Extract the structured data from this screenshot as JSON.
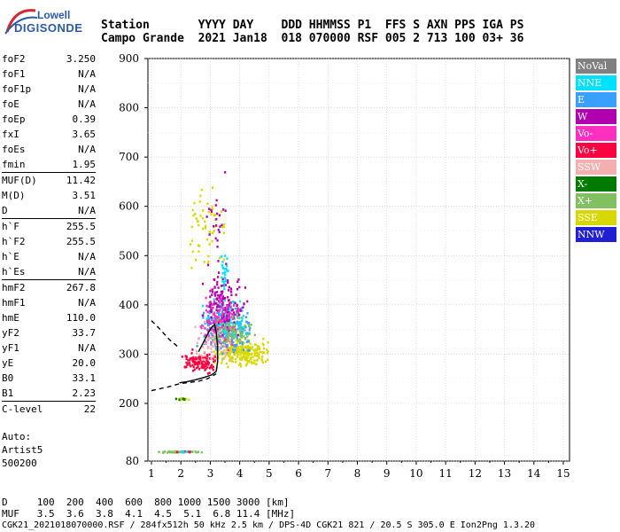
{
  "logo": {
    "line1": "Lowell",
    "line2": "DIGISONDE"
  },
  "header": {
    "row1": "Station       YYYY DAY    DDD HHMMSS P1  FFS S AXN PPS IGA PS",
    "row2": "Campo Grande  2021 Jan18  018 070000 RSF 005 2 713 100 03+ 36"
  },
  "params": [
    {
      "label": "foF2",
      "value": "3.250"
    },
    {
      "label": "foF1",
      "value": "N/A"
    },
    {
      "label": "foF1p",
      "value": "N/A"
    },
    {
      "label": "foE",
      "value": "N/A"
    },
    {
      "label": "foEp",
      "value": "0.39"
    },
    {
      "label": "fxI",
      "value": "3.65"
    },
    {
      "label": "foEs",
      "value": "N/A"
    },
    {
      "label": "fmin",
      "value": "1.95"
    },
    {
      "label": "MUF(D)",
      "value": "11.42"
    },
    {
      "label": "M(D)",
      "value": "3.51"
    },
    {
      "label": "D",
      "value": "N/A"
    },
    {
      "label": "h`F",
      "value": "255.5"
    },
    {
      "label": "h`F2",
      "value": "255.5"
    },
    {
      "label": "h`E",
      "value": "N/A"
    },
    {
      "label": "h`Es",
      "value": "N/A"
    },
    {
      "label": "hmF2",
      "value": "267.8"
    },
    {
      "label": "hmF1",
      "value": "N/A"
    },
    {
      "label": "hmE",
      "value": "110.0"
    },
    {
      "label": "yF2",
      "value": "33.7"
    },
    {
      "label": "yF1",
      "value": "N/A"
    },
    {
      "label": "yE",
      "value": "20.0"
    },
    {
      "label": "B0",
      "value": "33.1"
    },
    {
      "label": "B1",
      "value": "2.23"
    },
    {
      "label": "C-level",
      "value": "22"
    }
  ],
  "auto": {
    "line1": "Auto:",
    "line2": "Artist5",
    "line3": "500200"
  },
  "bottom": {
    "row1": "D     100  200  400  600  800 1000 1500 3000 [km]",
    "row2": "MUF   3.5  3.6  3.8  4.1  4.5  5.1  6.8 11.4 [MHz]"
  },
  "footer": "CGK21_2021018070000.RSF / 284fx512h 50 kHz 2.5 km / DPS-4D CGK21 821 / 20.5 S 305.0 E Ion2Png 1.3.20",
  "legend": [
    {
      "label": "NoVal",
      "color": "#808080"
    },
    {
      "label": "NNE",
      "color": "#00e0ff"
    },
    {
      "label": "E",
      "color": "#3aa0ff"
    },
    {
      "label": "W",
      "color": "#b000b0"
    },
    {
      "label": "Vo-",
      "color": "#ff30c0"
    },
    {
      "label": "Vo+",
      "color": "#ff0040"
    },
    {
      "label": "SSW",
      "color": "#f4b0b0"
    },
    {
      "label": "X-",
      "color": "#007a00"
    },
    {
      "label": "X+",
      "color": "#80c060"
    },
    {
      "label": "SSE",
      "color": "#d8d800"
    },
    {
      "label": "NNW",
      "color": "#2020d0"
    }
  ],
  "chart_data": {
    "type": "scatter",
    "xlabel": "",
    "ylabel": "",
    "xlim": [
      1,
      15
    ],
    "ylim": [
      80,
      900
    ],
    "x_ticks": [
      "1",
      "2",
      "3",
      "4",
      "5",
      "6",
      "7",
      "8",
      "9",
      "10",
      "11",
      "12",
      "13",
      "14",
      "15"
    ],
    "y_ticks": [
      "80",
      "200",
      "300",
      "400",
      "500",
      "600",
      "700",
      "800",
      "900"
    ],
    "grid": true,
    "clusters": [
      {
        "series": "SSE",
        "x": [
          3.0,
          5.0
        ],
        "y": [
          270,
          345
        ],
        "n": 260
      },
      {
        "series": "E",
        "x": [
          2.5,
          4.5
        ],
        "y": [
          285,
          420
        ],
        "n": 220
      },
      {
        "series": "NNE",
        "x": [
          2.6,
          4.3
        ],
        "y": [
          300,
          430
        ],
        "n": 120
      },
      {
        "series": "W",
        "x": [
          2.6,
          4.3
        ],
        "y": [
          320,
          480
        ],
        "n": 170
      },
      {
        "series": "Vo-",
        "x": [
          2.6,
          4.0
        ],
        "y": [
          300,
          440
        ],
        "n": 120
      },
      {
        "series": "Vo+",
        "x": [
          1.9,
          3.2
        ],
        "y": [
          255,
          320
        ],
        "n": 110
      },
      {
        "series": "SSW",
        "x": [
          2.3,
          3.8
        ],
        "y": [
          260,
          380
        ],
        "n": 60
      },
      {
        "series": "X+",
        "x": [
          3.0,
          4.5
        ],
        "y": [
          300,
          400
        ],
        "n": 70
      },
      {
        "series": "SSE",
        "x": [
          2.1,
          3.6
        ],
        "y": [
          450,
          660
        ],
        "n": 60
      },
      {
        "series": "W",
        "x": [
          2.8,
          3.6
        ],
        "y": [
          450,
          700
        ],
        "n": 25
      },
      {
        "series": "NNE",
        "x": [
          3.3,
          3.6
        ],
        "y": [
          410,
          520
        ],
        "n": 25
      },
      {
        "series": "SSE",
        "x": [
          1.8,
          2.3
        ],
        "y": [
          208,
          214
        ],
        "n": 18
      },
      {
        "series": "X-",
        "x": [
          1.8,
          2.3
        ],
        "y": [
          208,
          214
        ],
        "n": 6
      },
      {
        "series": "X+",
        "x": [
          1.1,
          2.7
        ],
        "y": [
          99,
          103
        ],
        "n": 40
      },
      {
        "series": "Vo+",
        "x": [
          1.8,
          2.4
        ],
        "y": [
          100,
          104
        ],
        "n": 8
      },
      {
        "series": "NNE",
        "x": [
          1.9,
          2.3
        ],
        "y": [
          100,
          104
        ],
        "n": 5
      }
    ],
    "trace_solid": {
      "x": [
        1.95,
        2.2,
        2.5,
        2.8,
        3.05,
        3.2,
        3.25,
        3.25,
        3.2,
        3.15,
        3.05,
        2.9,
        2.75,
        2.6
      ],
      "y": [
        242,
        244,
        248,
        253,
        258,
        265,
        285,
        315,
        345,
        360,
        355,
        340,
        322,
        305
      ]
    },
    "trace_dashed": {
      "x": [
        1.0,
        1.3,
        1.6,
        1.95,
        2.2,
        2.6,
        2.9,
        3.2
      ],
      "y": [
        226,
        230,
        234,
        240,
        242,
        245,
        250,
        260
      ]
    },
    "trace_dashed_upper": {
      "x": [
        1.0,
        1.3,
        1.6,
        1.9
      ],
      "y": [
        368,
        350,
        330,
        315
      ]
    }
  }
}
